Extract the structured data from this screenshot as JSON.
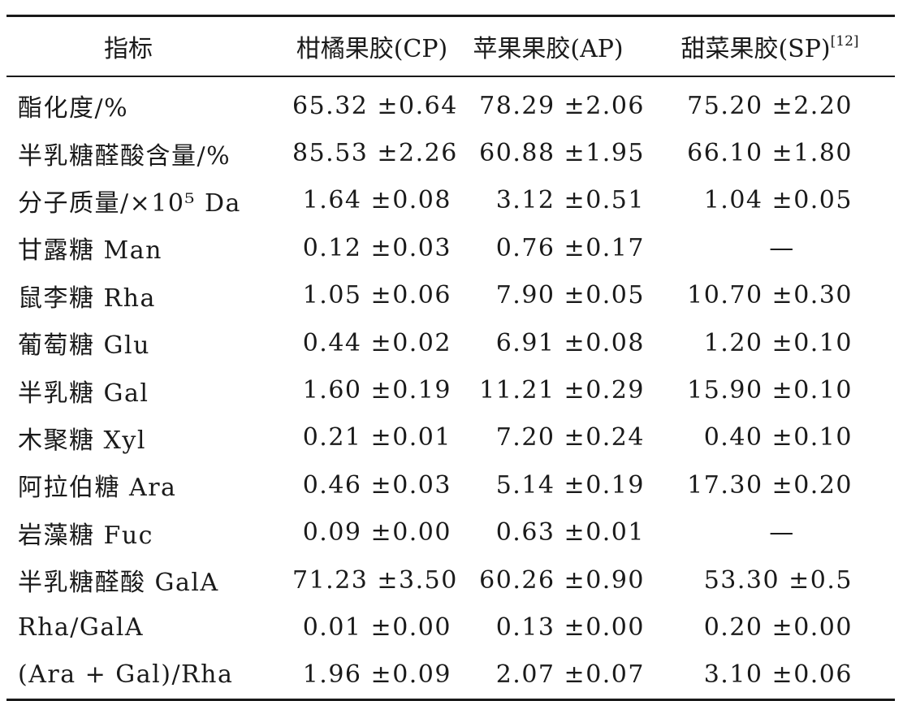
{
  "table": {
    "headers": [
      "指标",
      "柑橘果胶(CP)",
      "苹果果胶(AP)",
      "甜菜果胶(SP)"
    ],
    "header_ref": "[12]",
    "rows": [
      [
        "酯化度/%",
        "65.32 ±0.64",
        "78.29 ±2.06",
        "75.20 ±2.20"
      ],
      [
        "半乳糖醛酸含量/%",
        "85.53 ±2.26",
        "60.88 ±1.95",
        "66.10 ±1.80"
      ],
      [
        "分子质量/×10⁵ Da",
        "1.64 ±0.08",
        "3.12 ±0.51",
        "1.04 ±0.05"
      ],
      [
        "甘露糖 Man",
        "0.12 ±0.03",
        "0.76 ±0.17",
        "—"
      ],
      [
        "鼠李糖 Rha",
        "1.05 ±0.06",
        "7.90 ±0.05",
        "10.70 ±0.30"
      ],
      [
        "葡萄糖 Glu",
        "0.44 ±0.02",
        "6.91 ±0.08",
        "1.20 ±0.10"
      ],
      [
        "半乳糖 Gal",
        "1.60 ±0.19",
        "11.21 ±0.29",
        "15.90 ±0.10"
      ],
      [
        "木聚糖 Xyl",
        "0.21 ±0.01",
        "7.20 ±0.24",
        "0.40 ±0.10"
      ],
      [
        "阿拉伯糖 Ara",
        "0.46 ±0.03",
        "5.14 ±0.19",
        "17.30 ±0.20"
      ],
      [
        "岩藻糖 Fuc",
        "0.09 ±0.00",
        "0.63 ±0.01",
        "—"
      ],
      [
        "半乳糖醛酸 GalA",
        "71.23 ±3.50",
        "60.26 ±0.90",
        "53.30 ±0.5"
      ],
      [
        "Rha/GalA",
        "0.01 ±0.00",
        "0.13 ±0.00",
        "0.20 ±0.00"
      ],
      [
        "(Ara + Gal)/Rha",
        "1.96 ±0.09",
        "2.07 ±0.07",
        "3.10 ±0.06"
      ]
    ]
  }
}
